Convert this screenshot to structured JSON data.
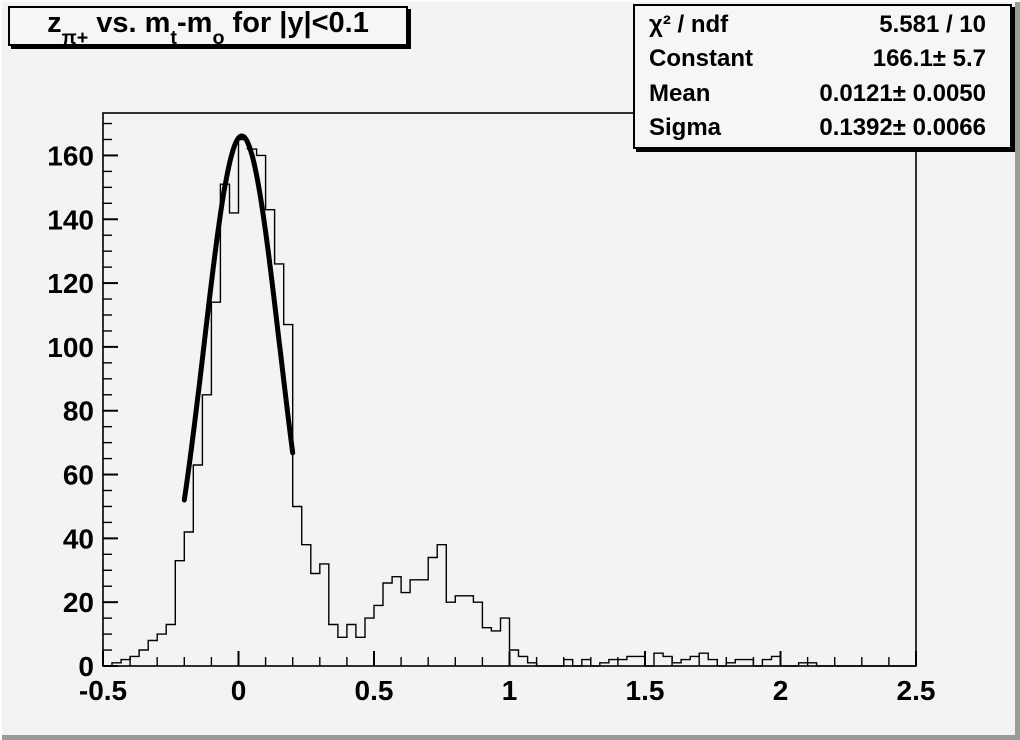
{
  "window": {
    "background": "#f3f3f3",
    "foreground": "#000000"
  },
  "title": {
    "p0": "z",
    "p0_sub": "π+",
    "p1": " vs. m",
    "p1_sub": "t",
    "p2": "-m",
    "p2_sub": "o",
    "p3": " for |y|<0.1"
  },
  "stats": {
    "rows": [
      {
        "label": "χ² / ndf",
        "value": "5.581 / 10"
      },
      {
        "label": "Constant",
        "value": "166.1± 5.7"
      },
      {
        "label": "Mean",
        "value": "0.0121± 0.0050"
      },
      {
        "label": "Sigma",
        "value": "0.1392± 0.0066"
      }
    ]
  },
  "chart_data": {
    "type": "bar",
    "subtype": "histogram-with-gaussian-fit",
    "title": "z_{π+} vs. m_{t}-m_{o} for |y|<0.1",
    "xlabel": "",
    "ylabel": "",
    "x_min": -0.5,
    "x_max": 2.5,
    "n_bins": 90,
    "bin_width": 0.033333,
    "values": [
      0,
      1,
      2,
      3,
      5,
      8,
      10,
      13,
      33,
      42,
      63,
      85,
      114,
      151,
      142,
      165,
      162,
      160,
      143,
      126,
      107,
      50,
      38,
      29,
      32,
      13,
      9,
      13,
      9,
      15,
      19,
      26,
      28,
      23,
      27,
      27,
      34,
      38,
      20,
      22,
      22,
      20,
      12,
      11,
      15,
      5,
      3,
      1,
      0,
      0,
      0,
      2,
      0,
      2,
      0,
      1,
      2,
      2,
      3,
      3,
      0,
      4,
      3,
      1,
      2,
      3,
      4,
      2,
      0,
      1,
      2,
      2,
      0,
      2,
      3,
      0,
      0,
      1,
      1,
      0,
      0,
      0,
      0,
      0,
      0,
      0,
      0,
      0,
      0,
      0
    ],
    "ylim": [
      0,
      173.3
    ],
    "x_ticks": [
      -0.5,
      0,
      0.5,
      1,
      1.5,
      2,
      2.5
    ],
    "x_tick_labels": [
      "-0.5",
      "0",
      "0.5",
      "1",
      "1.5",
      "2",
      "2.5"
    ],
    "x_minor_step": 0.1,
    "y_ticks": [
      0,
      20,
      40,
      60,
      80,
      100,
      120,
      140,
      160
    ],
    "y_tick_labels": [
      "0",
      "20",
      "40",
      "60",
      "80",
      "100",
      "120",
      "140",
      "160"
    ],
    "y_minor_step": 5,
    "grid": false,
    "legend": false,
    "fit": {
      "model": "gaussian",
      "chi2_ndf": "5.581 / 10",
      "constant": 166.1,
      "constant_err": 5.7,
      "mean": 0.0121,
      "mean_err": 0.005,
      "sigma": 0.1392,
      "sigma_err": 0.0066,
      "draw_range": [
        -0.2,
        0.2
      ]
    },
    "hist_color": "#000000",
    "fit_color": "#000000"
  }
}
